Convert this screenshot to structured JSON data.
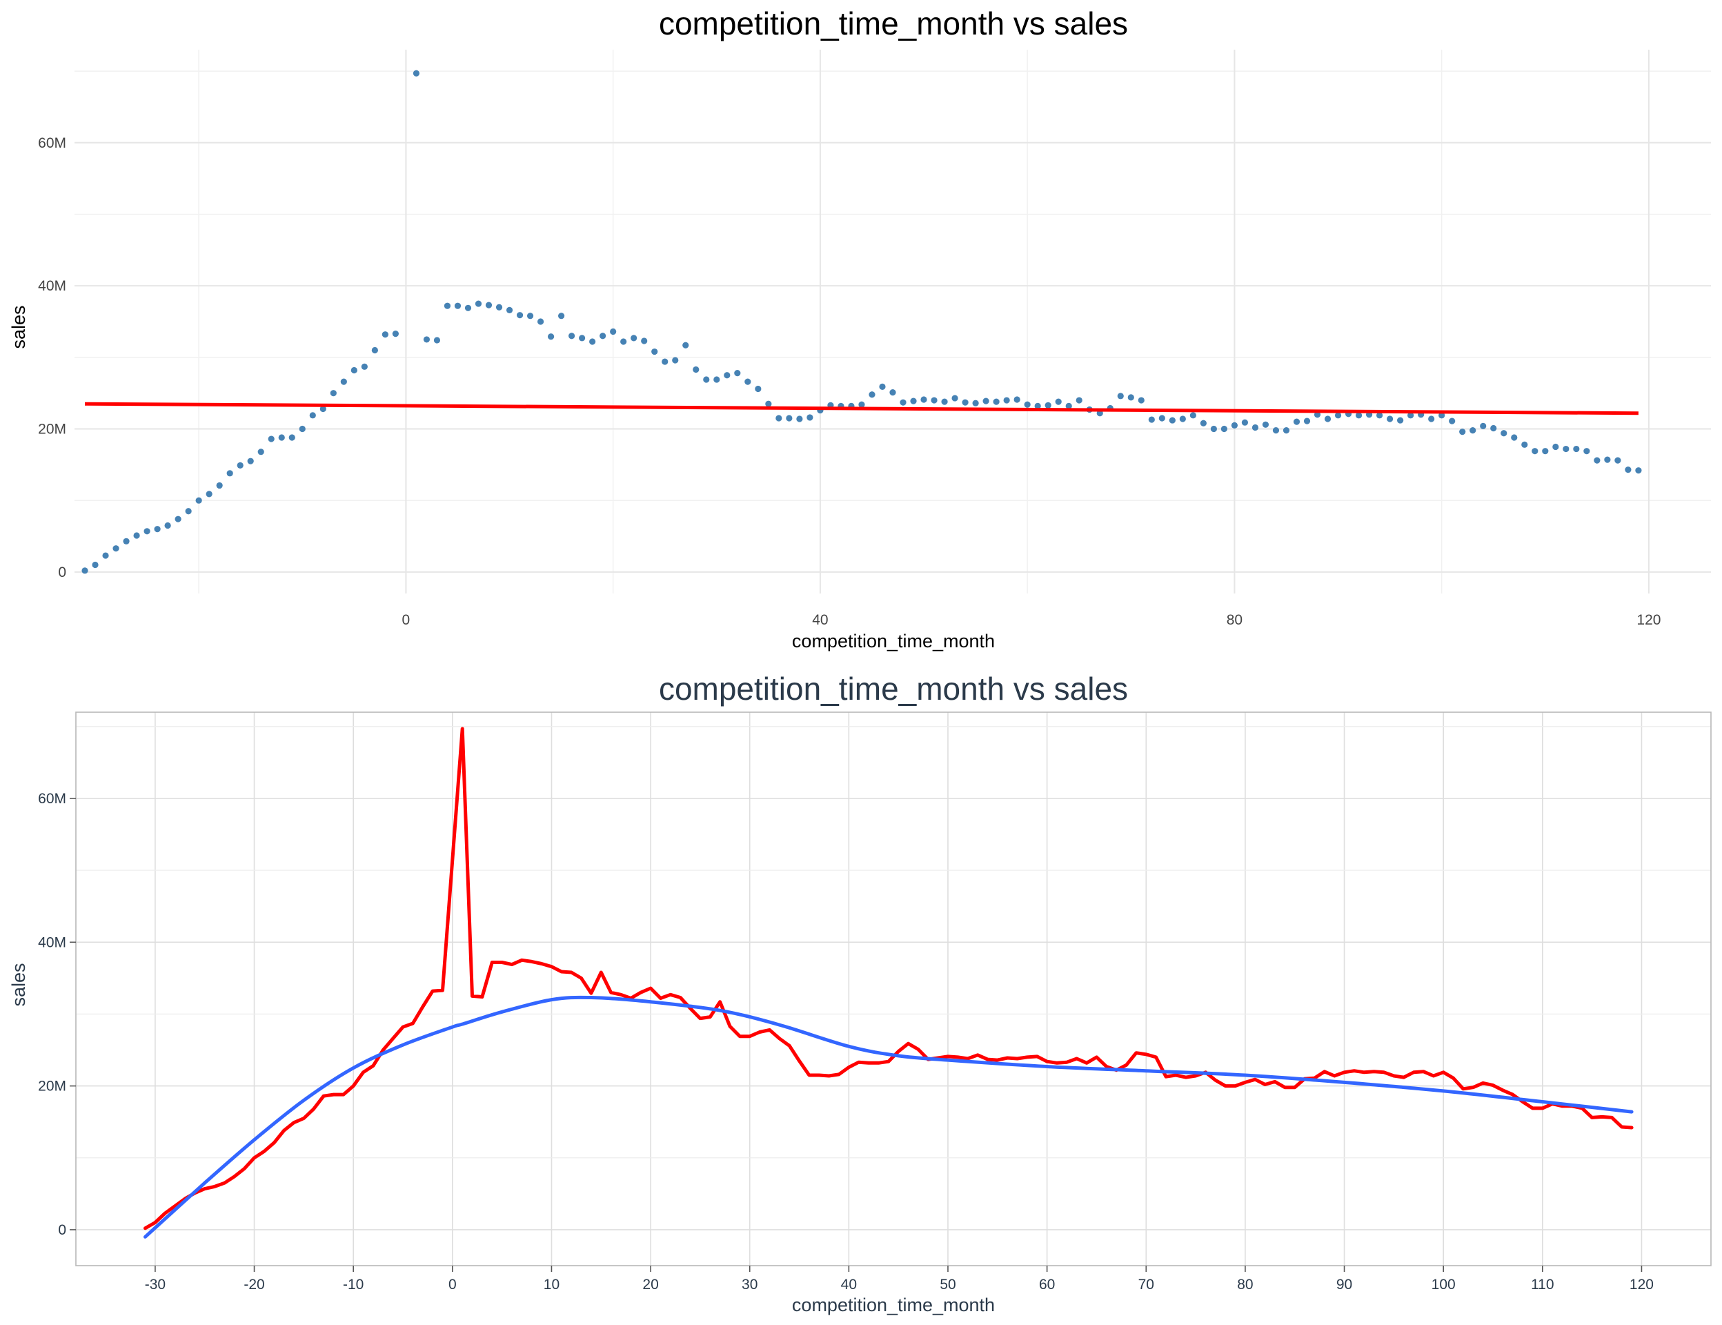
{
  "chart_data": [
    {
      "type": "scatter",
      "title": "competition_time_month vs sales",
      "xlabel": "competition_time_month",
      "ylabel": "sales",
      "xlim": [
        -32,
        126
      ],
      "ylim": [
        -3,
        73
      ],
      "x_ticks": [
        0,
        40,
        80,
        120
      ],
      "x_tick_labels": [
        "0",
        "40",
        "80",
        "120"
      ],
      "y_ticks": [
        0,
        20,
        40,
        60
      ],
      "y_tick_labels": [
        "0",
        "20M",
        "40M",
        "60M"
      ],
      "grid": true,
      "point_color": "#4682b4",
      "trend_line": {
        "method": "linear",
        "color": "#ff0000",
        "x": [
          -31,
          119
        ],
        "y": [
          23.5,
          22.2
        ]
      }
    },
    {
      "type": "line",
      "title": "competition_time_month vs sales",
      "xlabel": "competition_time_month",
      "ylabel": "sales",
      "xlim": [
        -38,
        127
      ],
      "ylim": [
        -5,
        72
      ],
      "x_ticks": [
        -30,
        -20,
        -10,
        0,
        10,
        20,
        30,
        40,
        50,
        60,
        70,
        80,
        90,
        100,
        110,
        120
      ],
      "x_tick_labels": [
        "-30",
        "-20",
        "-10",
        "0",
        "10",
        "20",
        "30",
        "40",
        "50",
        "60",
        "70",
        "80",
        "90",
        "100",
        "110",
        "120"
      ],
      "y_ticks": [
        0,
        20,
        40,
        60
      ],
      "y_tick_labels": [
        "0",
        "20M",
        "40M",
        "60M"
      ],
      "grid": true,
      "line_color": "#ff0000",
      "smooth": {
        "method": "loess",
        "color": "#3366ff",
        "x": [
          -31,
          -25,
          -20,
          -15,
          -10,
          -5,
          0,
          1,
          5,
          10,
          14,
          20,
          27,
          33,
          40,
          45,
          50,
          60,
          70,
          80,
          90,
          100,
          110,
          119
        ],
        "y": [
          -1.0,
          6.5,
          12.5,
          18.0,
          22.5,
          25.7,
          28.2,
          28.6,
          30.3,
          32.0,
          32.3,
          31.7,
          30.5,
          28.5,
          25.5,
          24.2,
          23.6,
          22.7,
          22.1,
          21.5,
          20.5,
          19.3,
          17.8,
          16.4
        ]
      }
    }
  ],
  "series": {
    "x": [
      -31,
      -30,
      -29,
      -28,
      -27,
      -26,
      -25,
      -24,
      -23,
      -22,
      -21,
      -20,
      -19,
      -18,
      -17,
      -16,
      -15,
      -14,
      -13,
      -12,
      -11,
      -10,
      -9,
      -8,
      -7,
      -6,
      -5,
      -4,
      -3,
      -2,
      -1,
      0,
      1,
      2,
      3,
      4,
      5,
      6,
      7,
      8,
      9,
      10,
      11,
      12,
      13,
      14,
      15,
      16,
      17,
      18,
      19,
      20,
      21,
      22,
      23,
      24,
      25,
      26,
      27,
      28,
      29,
      30,
      31,
      32,
      33,
      34,
      35,
      36,
      37,
      38,
      39,
      40,
      41,
      42,
      43,
      44,
      45,
      46,
      47,
      48,
      49,
      50,
      51,
      52,
      53,
      54,
      55,
      56,
      57,
      58,
      59,
      60,
      61,
      62,
      63,
      64,
      65,
      66,
      67,
      68,
      69,
      70,
      71,
      72,
      73,
      74,
      75,
      76,
      77,
      78,
      79,
      80,
      81,
      82,
      83,
      84,
      85,
      86,
      87,
      88,
      89,
      90,
      91,
      92,
      93,
      94,
      95,
      96,
      97,
      98,
      99,
      100,
      101,
      102,
      103,
      104,
      105,
      106,
      107,
      108,
      109,
      110,
      111,
      112,
      113,
      114,
      115,
      116,
      117,
      118,
      119
    ],
    "y": [
      0.2,
      1.0,
      2.3,
      3.3,
      4.3,
      5.1,
      5.7,
      6.0,
      6.5,
      7.4,
      8.5,
      10.0,
      10.9,
      12.1,
      13.8,
      14.9,
      15.5,
      16.8,
      18.6,
      18.8,
      18.8,
      20.0,
      21.9,
      22.8,
      25.0,
      26.6,
      28.2,
      28.7,
      31.0,
      33.2,
      33.3,
      null,
      69.7,
      32.5,
      32.4,
      37.2,
      37.2,
      36.9,
      37.5,
      37.3,
      37.0,
      36.6,
      35.9,
      35.8,
      35.0,
      32.9,
      35.8,
      33.0,
      32.7,
      32.2,
      33.0,
      33.6,
      32.2,
      32.7,
      32.3,
      30.8,
      29.4,
      29.6,
      31.7,
      28.3,
      26.9,
      26.9,
      27.5,
      27.8,
      26.6,
      25.6,
      23.5,
      21.5,
      21.5,
      21.4,
      21.6,
      22.6,
      23.3,
      23.2,
      23.2,
      23.4,
      24.8,
      25.9,
      25.1,
      23.7,
      23.9,
      24.1,
      24.0,
      23.8,
      24.3,
      23.7,
      23.6,
      23.9,
      23.8,
      24.0,
      24.1,
      23.4,
      23.2,
      23.3,
      23.8,
      23.2,
      24.0,
      22.7,
      22.2,
      22.9,
      24.6,
      24.4,
      24.0,
      21.3,
      21.5,
      21.2,
      21.4,
      21.9,
      20.8,
      20.0,
      20.0,
      20.5,
      20.9,
      20.2,
      20.6,
      19.8,
      19.8,
      21.0,
      21.1,
      22.0,
      21.4,
      21.9,
      22.1,
      21.9,
      22.0,
      21.9,
      21.4,
      21.2,
      21.9,
      22.0,
      21.4,
      21.9,
      21.1,
      19.6,
      19.8,
      20.4,
      20.1,
      19.4,
      18.8,
      17.8,
      16.9,
      16.9,
      17.5,
      17.2,
      17.2,
      16.9,
      15.6,
      15.7,
      15.6,
      14.3,
      14.2
    ]
  }
}
